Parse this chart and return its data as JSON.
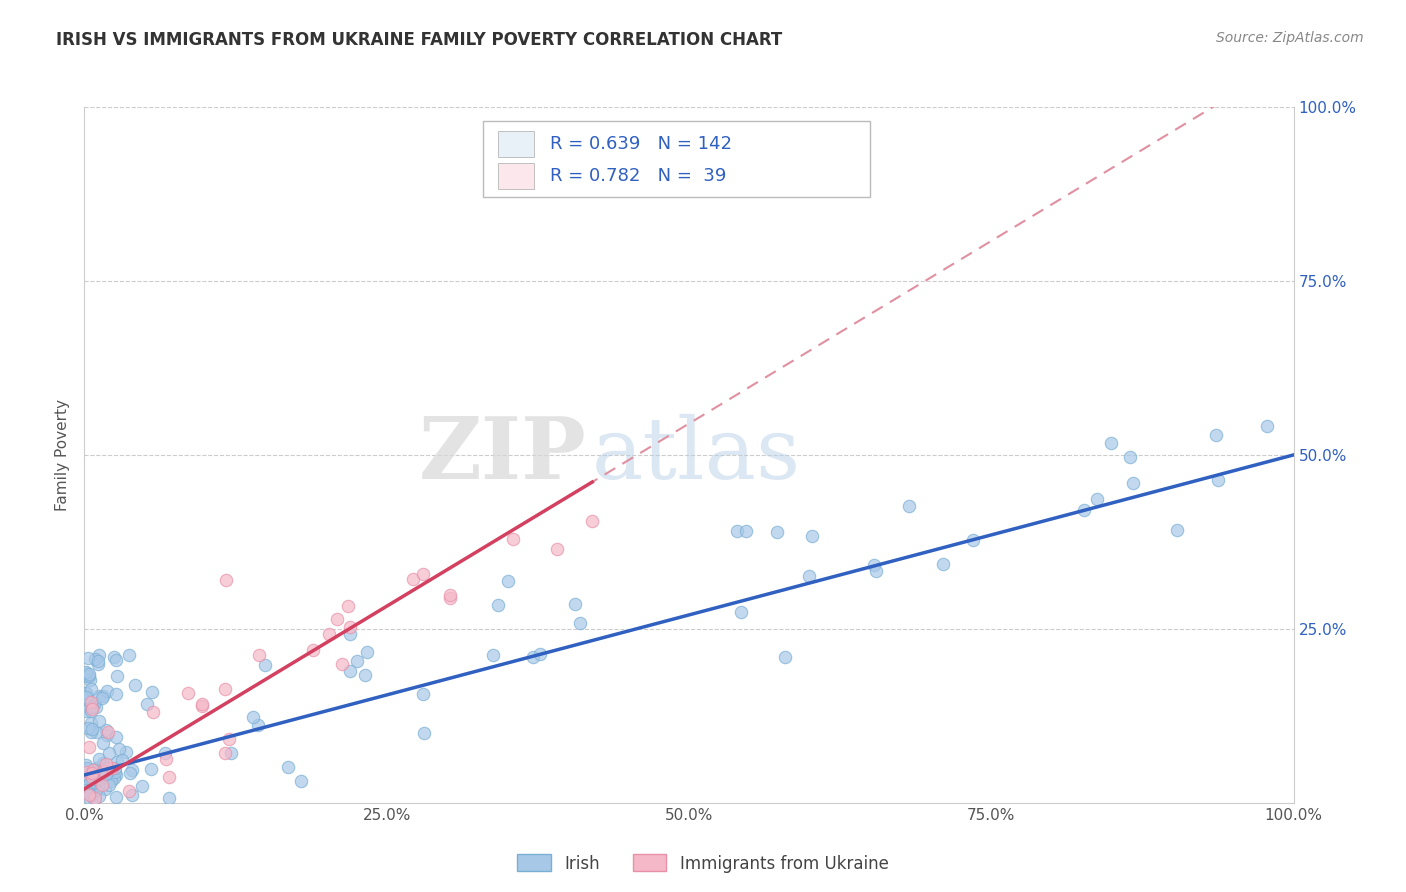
{
  "title": "IRISH VS IMMIGRANTS FROM UKRAINE FAMILY POVERTY CORRELATION CHART",
  "source": "Source: ZipAtlas.com",
  "ylabel": "Family Poverty",
  "xlim": [
    0,
    1.0
  ],
  "ylim": [
    0,
    1.0
  ],
  "xtick_labels": [
    "0.0%",
    "25.0%",
    "50.0%",
    "75.0%",
    "100.0%"
  ],
  "xtick_vals": [
    0,
    0.25,
    0.5,
    0.75,
    1.0
  ],
  "right_ytick_labels": [
    "25.0%",
    "50.0%",
    "75.0%",
    "100.0%"
  ],
  "right_ytick_vals": [
    0.25,
    0.5,
    0.75,
    1.0
  ],
  "irish_dot_color": "#a8c8e8",
  "irish_edge_color": "#7aafd4",
  "ukraine_dot_color": "#f5b8c8",
  "ukraine_edge_color": "#e890a8",
  "irish_line_color": "#3060c0",
  "ukraine_line_color": "#d44060",
  "dashed_line_color": "#e090a0",
  "irish_R": "0.639",
  "irish_N": "142",
  "ukraine_R": "0.782",
  "ukraine_N": " 39",
  "watermark_zip": "ZIP",
  "watermark_atlas": "atlas",
  "bg_color": "#ffffff",
  "grid_color": "#cccccc",
  "label_irish": "Irish",
  "label_ukraine": "Immigrants from Ukraine",
  "right_tick_color": "#3060c0",
  "title_color": "#333333",
  "source_color": "#888888",
  "legend_text_color": "#3060c0",
  "legend_box_color": "#e8f0f8",
  "legend_box2_color": "#fce8ec"
}
